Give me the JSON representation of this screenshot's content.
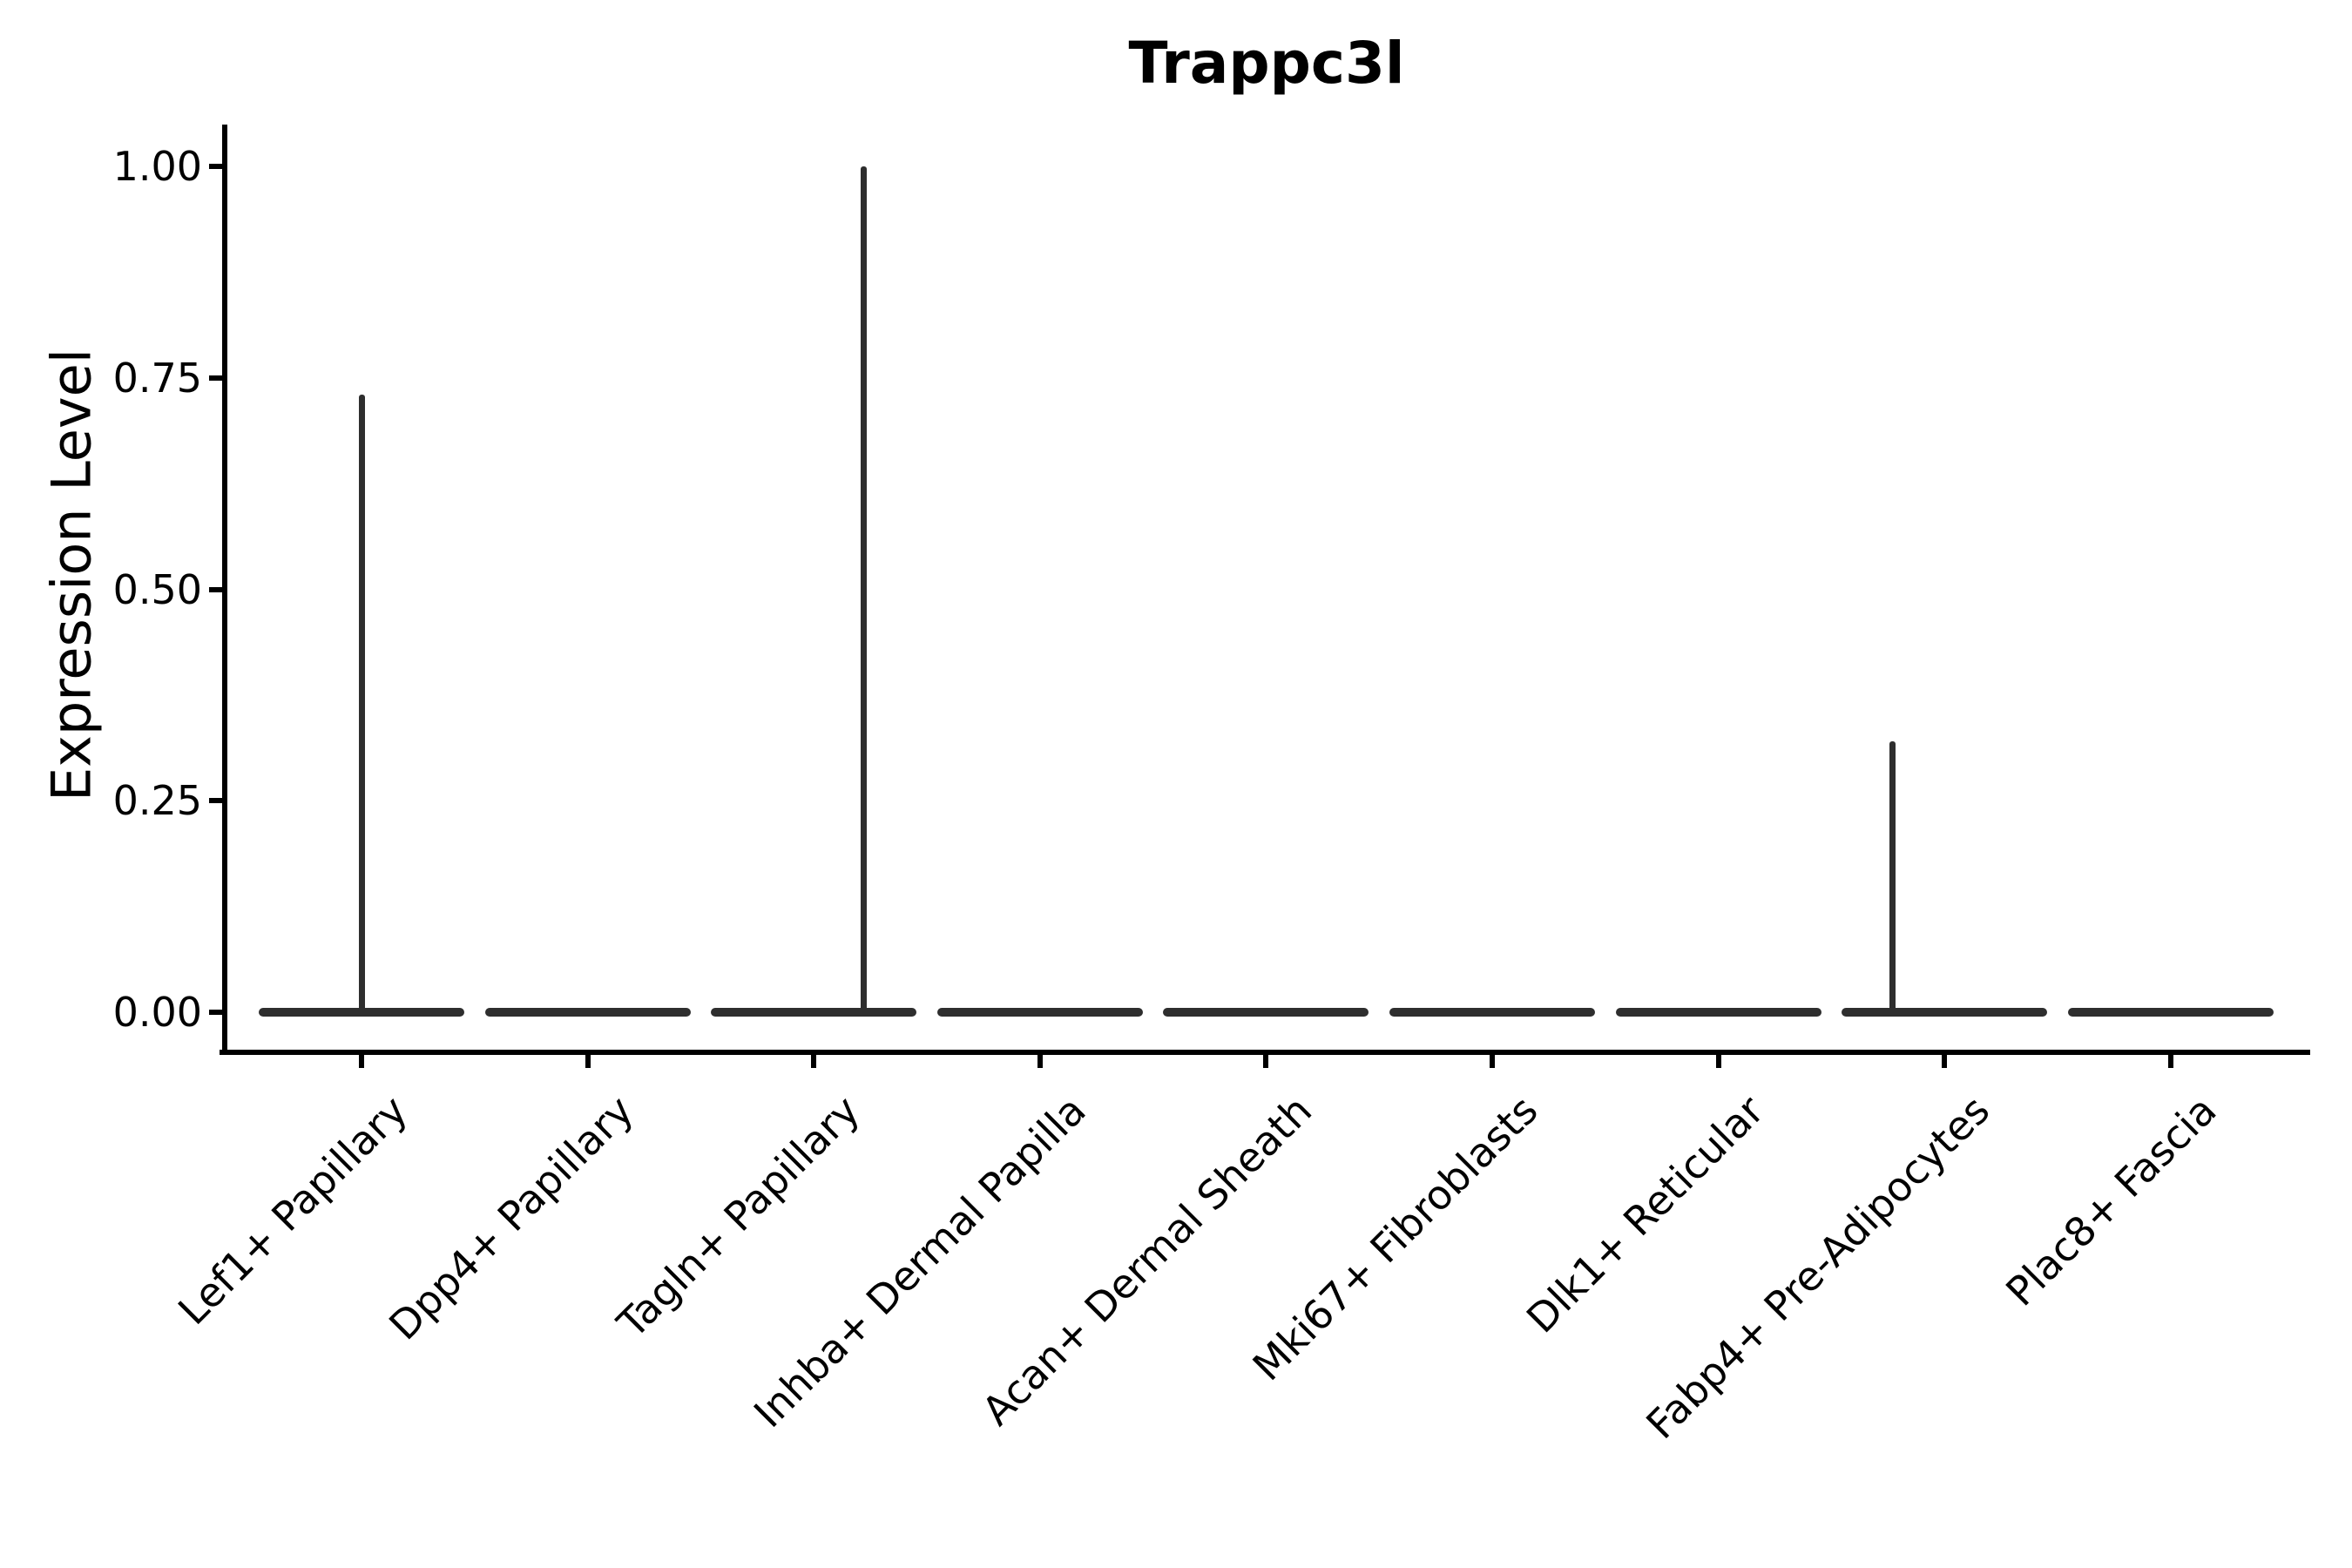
{
  "chart_data": {
    "type": "violin",
    "title": "Trappc3l",
    "ylabel": "Expression Level",
    "xlabel": "",
    "ylim": [
      0.0,
      1.0
    ],
    "grid": false,
    "legend": null,
    "yticks": [
      {
        "label": "1.00",
        "value": 1.0
      },
      {
        "label": "0.75",
        "value": 0.75
      },
      {
        "label": "0.50",
        "value": 0.5
      },
      {
        "label": "0.25",
        "value": 0.25
      },
      {
        "label": "0.00",
        "value": 0.0
      }
    ],
    "categories": [
      {
        "label": "Lef1+ Papillary",
        "baseline_value": 0.0,
        "spike_max": 0.73,
        "spike_x_offset": 0.0
      },
      {
        "label": "Dpp4+ Papillary",
        "baseline_value": 0.0,
        "spike_max": 0.0,
        "spike_x_offset": 0.0
      },
      {
        "label": "Tagln+ Papillary",
        "baseline_value": 0.0,
        "spike_max": 1.0,
        "spike_x_offset": 0.22
      },
      {
        "label": "Inhba+ Dermal Papilla",
        "baseline_value": 0.0,
        "spike_max": 0.0,
        "spike_x_offset": 0.0
      },
      {
        "label": "Acan+ Dermal Sheath",
        "baseline_value": 0.0,
        "spike_max": 0.0,
        "spike_x_offset": 0.0
      },
      {
        "label": "Mki67+ Fibroblasts",
        "baseline_value": 0.0,
        "spike_max": 0.0,
        "spike_x_offset": 0.0
      },
      {
        "label": "Dlk1+ Reticular",
        "baseline_value": 0.0,
        "spike_max": 0.0,
        "spike_x_offset": 0.0
      },
      {
        "label": "Fabp4+ Pre-Adipocytes",
        "baseline_value": 0.0,
        "spike_max": 0.32,
        "spike_x_offset": -0.23
      },
      {
        "label": "Plac8+ Fascia",
        "baseline_value": 0.0,
        "spike_max": 0.0,
        "spike_x_offset": 0.0
      }
    ],
    "description": "All distributions are concentrated at expression level 0 (flat violin bodies); thin spikes mark the maximum detected expression in Lef1+ Papillary (0.73), Tagln+ Papillary (1.00) and Fabp4+ Pre-Adipocytes (0.32).",
    "colors": {
      "violin": "#2e2e2e",
      "axis": "#000000",
      "text": "#000000",
      "background": "#ffffff"
    }
  }
}
